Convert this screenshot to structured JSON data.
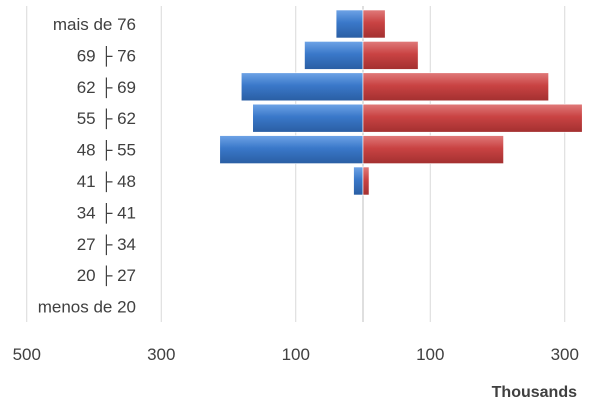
{
  "chart_data": {
    "type": "bar",
    "orientation": "horizontal",
    "layout": "population-pyramid",
    "categories": [
      "mais de 76",
      "69 ├ 76",
      "62 ├ 69",
      "55 ├ 62",
      "48 ├ 55",
      "41 ├ 48",
      "34 ├ 41",
      "27 ├ 34",
      "20 ├ 27",
      "menos de 20"
    ],
    "series": [
      {
        "color": "#3a78c9",
        "side": "left",
        "values": [
          40,
          87,
          181,
          164,
          213,
          14,
          0,
          0,
          0,
          0
        ]
      },
      {
        "color": "#c94343",
        "side": "right",
        "values": [
          33,
          82,
          276,
          326,
          209,
          9,
          0,
          0,
          0,
          0
        ]
      }
    ],
    "xlim": [
      -500,
      300
    ],
    "x_ticks": [
      -500,
      -300,
      -100,
      100,
      300
    ],
    "x_tick_labels": [
      "500",
      "300",
      "100",
      "100",
      "300"
    ],
    "xlabel": "Thousands",
    "grid": "vertical"
  }
}
